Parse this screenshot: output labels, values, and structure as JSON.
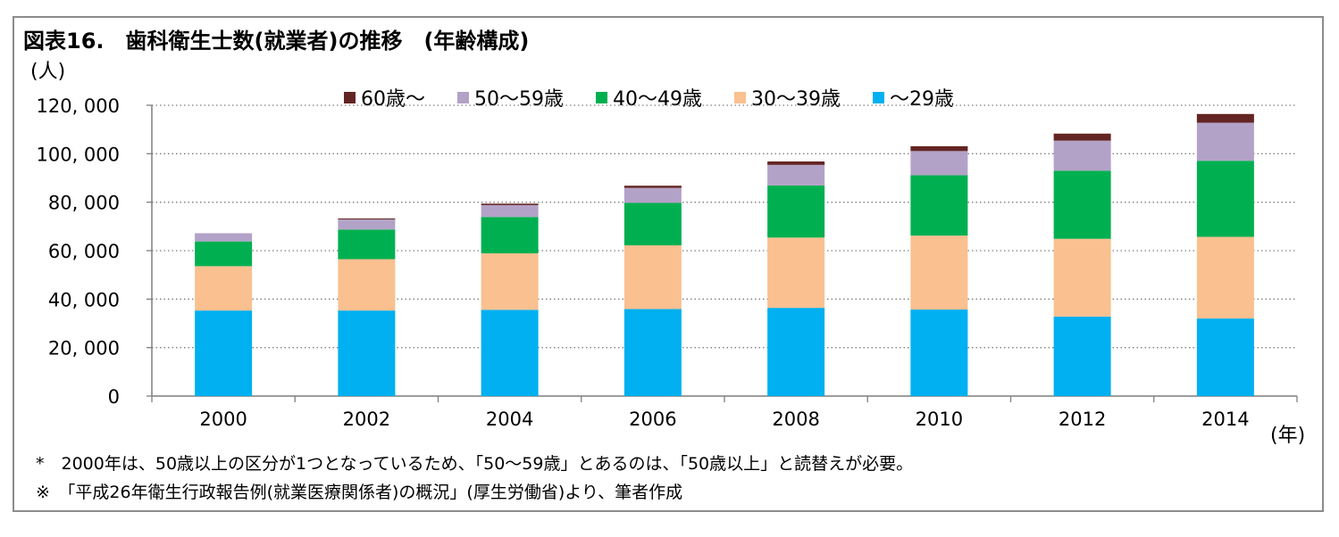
{
  "title": "図表16.　歯科衛生士数(就業者)の推移　(年齢構成)",
  "y_unit": "(人)",
  "x_unit": "(年)",
  "notes": [
    "*　2000年は、50歳以上の区分が1つとなっているため、「50～59歳」とあるのは、「50歳以上」と読替えが必要。",
    "※　「平成26年衛生行政報告例(就業医療関係者)の概況」(厚生労働省)より、筆者作成"
  ],
  "chart_data": {
    "type": "bar",
    "stacked": true,
    "title": "",
    "xlabel": "(年)",
    "ylabel": "(人)",
    "ylim": [
      0,
      120000
    ],
    "yticks": [
      0,
      20000,
      40000,
      60000,
      80000,
      100000,
      120000
    ],
    "ytick_labels": [
      "0",
      "20, 000",
      "40, 000",
      "60, 000",
      "80, 000",
      "100, 000",
      "120, 000"
    ],
    "categories": [
      "2000",
      "2002",
      "2004",
      "2006",
      "2008",
      "2010",
      "2012",
      "2014"
    ],
    "grid": "horizontal dotted",
    "legend_position": "top",
    "legend_order": [
      "60歳～",
      "50～59歳",
      "40～49歳",
      "30～39歳",
      "～29歳"
    ],
    "series": [
      {
        "name": "～29歳",
        "color": "#00b0f0",
        "values": [
          35300,
          35300,
          35600,
          35900,
          36400,
          35700,
          32800,
          32000
        ]
      },
      {
        "name": "30～39歳",
        "color": "#fac090",
        "values": [
          18300,
          21200,
          23300,
          26300,
          29000,
          30500,
          32100,
          33700
        ]
      },
      {
        "name": "40～49歳",
        "color": "#00b050",
        "values": [
          10200,
          12200,
          15000,
          17500,
          21500,
          24900,
          28100,
          31400
        ]
      },
      {
        "name": "50～59歳",
        "color": "#b3a2c7",
        "values": [
          3400,
          4200,
          4900,
          6200,
          8500,
          10000,
          12400,
          15700
        ]
      },
      {
        "name": "60歳～",
        "color": "#632523",
        "values": [
          0,
          400,
          600,
          900,
          1400,
          2000,
          2900,
          3600
        ]
      }
    ]
  }
}
